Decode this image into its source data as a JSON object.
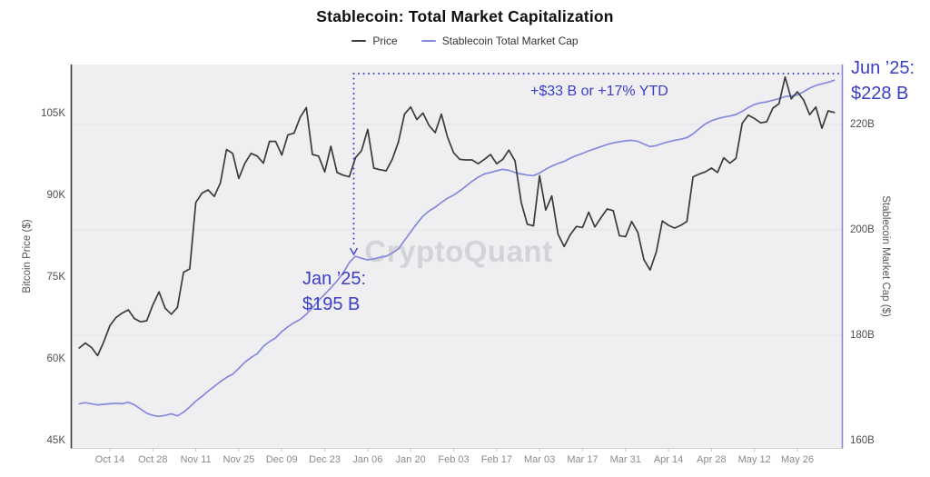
{
  "title": "Stablecoin: Total Market Capitalization",
  "legend": [
    {
      "label": "Price",
      "color": "#3b3b3b"
    },
    {
      "label": "Stablecoin Total Market Cap",
      "color": "#8489dd"
    }
  ],
  "watermark": "CryptoQuant",
  "annotations": {
    "jan_label_line1": "Jan ’25:",
    "jan_label_line2": "$195 B",
    "jun_label_line1": "Jun ’25:",
    "jun_label_line2": "$228 B",
    "ytd_label": "+$33 B or +17% YTD",
    "annotation_color": "#3a3ec6"
  },
  "axes": {
    "left": {
      "title": "Bitcoin Price ($)",
      "tick_labels": [
        "45K",
        "60K",
        "75K",
        "90K",
        "105K"
      ],
      "tick_values": [
        45,
        60,
        75,
        90,
        105
      ]
    },
    "right": {
      "title": "Stablecoin Market Cap ($)",
      "tick_labels": [
        "160B",
        "180B",
        "200B",
        "220B"
      ],
      "tick_values": [
        160,
        180,
        200,
        220
      ],
      "gridline_values": [
        180,
        200,
        220
      ]
    },
    "x": {
      "tick_labels": [
        "Oct 14",
        "Oct 28",
        "Nov 11",
        "Nov 25",
        "Dec 09",
        "Dec 23",
        "Jan 06",
        "Jan 20",
        "Feb 03",
        "Feb 17",
        "Mar 03",
        "Mar 17",
        "Mar 31",
        "Apr 14",
        "Apr 28",
        "May 12",
        "May 26"
      ]
    }
  },
  "chart_data": {
    "type": "line",
    "x_start_date": "2024-10-04",
    "x_step_days": 2,
    "x_tick_labels": [
      "Oct 14",
      "Oct 28",
      "Nov 11",
      "Nov 25",
      "Dec 09",
      "Dec 23",
      "Jan 06",
      "Jan 20",
      "Feb 03",
      "Feb 17",
      "Mar 03",
      "Mar 17",
      "Mar 31",
      "Apr 14",
      "Apr 28",
      "May 12",
      "May 26"
    ],
    "left_axis_range_thousands_usd": [
      45,
      112
    ],
    "right_axis_range_billions_usd": [
      160,
      230
    ],
    "grid": "horizontal-only",
    "legend_position": "top-center",
    "series": [
      {
        "name": "Price",
        "axis": "left",
        "unit": "USD (thousands)",
        "color": "#3b3b3b",
        "values": [
          62.0,
          62.9,
          62.1,
          60.6,
          63.1,
          66.1,
          67.6,
          68.4,
          69.0,
          67.4,
          66.8,
          67.0,
          69.9,
          72.3,
          69.3,
          68.2,
          69.4,
          75.9,
          76.5,
          88.7,
          90.4,
          91.0,
          89.8,
          92.3,
          98.4,
          97.7,
          93.1,
          95.9,
          97.7,
          97.2,
          95.9,
          99.9,
          99.9,
          97.4,
          101.1,
          101.4,
          104.3,
          106.1,
          97.5,
          97.2,
          94.3,
          99.0,
          94.2,
          93.7,
          93.4,
          96.9,
          98.2,
          102.1,
          95.0,
          94.7,
          94.5,
          96.6,
          99.8,
          104.9,
          106.2,
          103.9,
          105.1,
          102.8,
          101.5,
          104.9,
          100.7,
          97.8,
          96.6,
          96.5,
          96.5,
          95.8,
          96.6,
          97.5,
          95.8,
          96.6,
          98.3,
          96.3,
          88.7,
          84.7,
          84.4,
          93.6,
          87.3,
          89.9,
          82.9,
          80.6,
          82.8,
          84.3,
          84.1,
          86.9,
          84.2,
          85.9,
          87.5,
          87.2,
          82.6,
          82.4,
          85.2,
          83.2,
          78.2,
          76.3,
          79.6,
          85.3,
          84.5,
          84.0,
          84.5,
          85.2,
          93.4,
          93.9,
          94.3,
          95.0,
          94.2,
          96.9,
          95.9,
          96.8,
          103.2,
          104.7,
          104.1,
          103.3,
          103.5,
          106.0,
          106.8,
          111.7,
          107.7,
          109.0,
          107.5,
          104.8,
          106.2,
          102.3,
          105.5,
          105.2
        ]
      },
      {
        "name": "Stablecoin Total Market Cap",
        "axis": "right",
        "unit": "USD (billions)",
        "color": "#8489dd",
        "values": [
          167.0,
          167.2,
          167.0,
          166.8,
          166.9,
          167.0,
          167.1,
          167.0,
          167.3,
          166.8,
          166.0,
          165.2,
          164.8,
          164.6,
          164.8,
          165.1,
          164.7,
          165.4,
          166.4,
          167.5,
          168.4,
          169.4,
          170.3,
          171.2,
          172.0,
          172.6,
          173.7,
          174.9,
          175.8,
          176.5,
          177.9,
          178.8,
          179.5,
          180.7,
          181.6,
          182.4,
          183.0,
          184.0,
          185.2,
          186.6,
          187.8,
          189.0,
          190.3,
          191.8,
          193.8,
          195.0,
          194.6,
          194.3,
          194.5,
          194.8,
          195.0,
          195.6,
          196.4,
          198.0,
          199.6,
          201.2,
          202.6,
          203.6,
          204.3,
          205.2,
          206.0,
          206.6,
          207.4,
          208.3,
          209.2,
          210.0,
          210.6,
          210.9,
          211.2,
          211.5,
          211.3,
          210.9,
          210.6,
          210.4,
          210.3,
          210.8,
          211.5,
          212.1,
          212.6,
          213.0,
          213.6,
          214.1,
          214.5,
          215.0,
          215.4,
          215.8,
          216.2,
          216.5,
          216.7,
          216.9,
          217.0,
          216.8,
          216.3,
          215.8,
          216.0,
          216.4,
          216.7,
          217.0,
          217.2,
          217.5,
          218.2,
          219.2,
          220.1,
          220.7,
          221.1,
          221.4,
          221.6,
          221.9,
          222.5,
          223.2,
          223.8,
          224.1,
          224.3,
          224.6,
          224.9,
          225.3,
          225.4,
          225.6,
          226.2,
          226.9,
          227.4,
          227.7,
          228.0,
          228.4
        ]
      }
    ],
    "key_points": [
      {
        "label": "Jan ’25",
        "value_billions": 195
      },
      {
        "label": "Jun ’25",
        "value_billions": 228
      },
      {
        "label": "YTD change",
        "value": "+$33 B or +17%"
      }
    ]
  }
}
